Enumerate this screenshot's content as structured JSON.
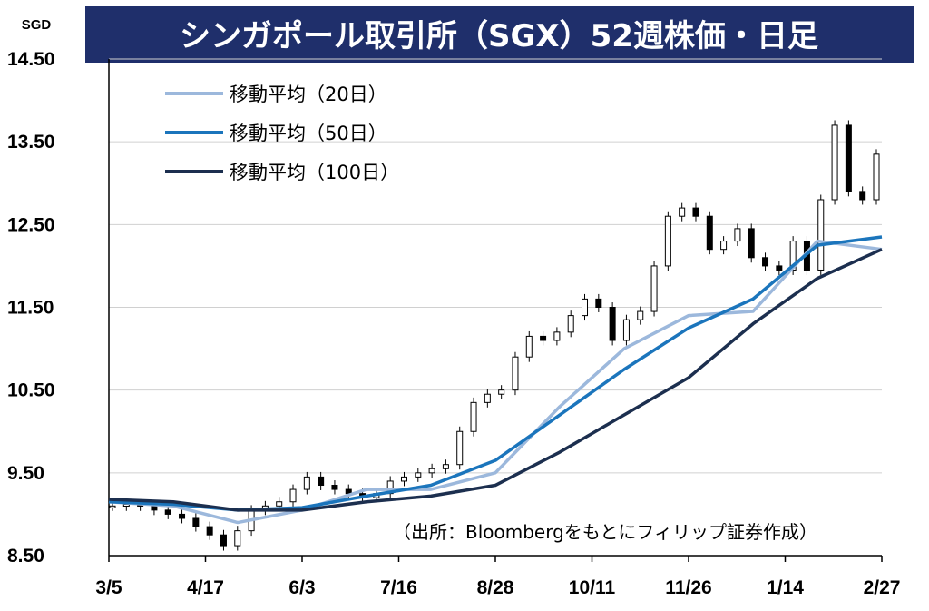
{
  "chart_data": {
    "type": "line",
    "title": "シンガポール取引所（SGX）52週株価・日足",
    "unit": "SGD",
    "ylim": [
      8.5,
      14.5
    ],
    "y_ticks": [
      "14.50",
      "13.50",
      "12.50",
      "11.50",
      "10.50",
      "9.50",
      "8.50"
    ],
    "x_ticks": [
      "3/5",
      "4/17",
      "6/3",
      "7/16",
      "8/28",
      "10/11",
      "11/26",
      "1/14",
      "2/27"
    ],
    "grid": true,
    "legend_position": "top-left",
    "source": "（出所：Bloombergをもとにフィリップ証券作成）",
    "colors": {
      "title_bg": "#1f2f6b",
      "ma20": "#9cb8dc",
      "ma50": "#1b75bc",
      "ma100": "#1c2f4f",
      "candle": "#000000"
    },
    "x": [
      0,
      30,
      60,
      90,
      120,
      150,
      180,
      210,
      240,
      270,
      300,
      330,
      360
    ],
    "series": [
      {
        "name": "移動平均（20日）",
        "values": [
          9.15,
          9.1,
          8.9,
          9.05,
          9.3,
          9.3,
          9.5,
          10.3,
          11.0,
          11.4,
          11.45,
          12.3,
          12.2
        ]
      },
      {
        "name": "移動平均（50日）",
        "values": [
          9.15,
          9.12,
          9.05,
          9.08,
          9.22,
          9.35,
          9.65,
          10.2,
          10.75,
          11.25,
          11.6,
          12.25,
          12.35
        ]
      },
      {
        "name": "移動平均（100日）",
        "values": [
          9.18,
          9.15,
          9.05,
          9.05,
          9.15,
          9.22,
          9.35,
          9.75,
          10.2,
          10.65,
          11.3,
          11.85,
          12.2
        ]
      }
    ],
    "price": [
      9.1,
      9.12,
      9.1,
      9.05,
      9.0,
      8.95,
      8.85,
      8.75,
      8.62,
      8.8,
      9.05,
      9.1,
      9.15,
      9.3,
      9.45,
      9.35,
      9.3,
      9.25,
      9.2,
      9.25,
      9.4,
      9.45,
      9.5,
      9.55,
      9.6,
      10.0,
      10.35,
      10.45,
      10.5,
      10.9,
      11.15,
      11.1,
      11.2,
      11.4,
      11.6,
      11.5,
      11.1,
      11.35,
      11.45,
      12.0,
      12.6,
      12.7,
      12.6,
      12.2,
      12.3,
      12.45,
      12.1,
      12.0,
      11.95,
      12.3,
      11.95,
      12.8,
      13.7,
      12.9,
      12.8,
      13.35
    ]
  }
}
